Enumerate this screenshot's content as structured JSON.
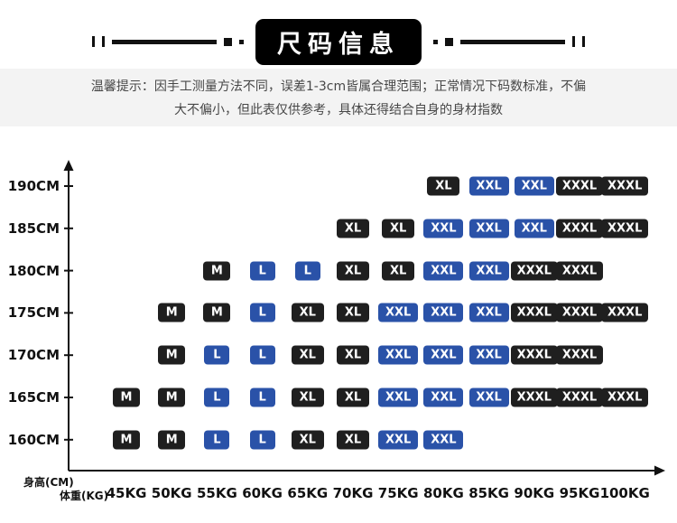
{
  "title": "尺码信息",
  "notice": {
    "line1": "温馨提示：因手工测量方法不同，误差1-3cm皆属合理范围；正常情况下码数标准，不偏",
    "line2": "大不偏小，但此表仅供参考，具体还得结合自身的身材指数"
  },
  "colors": {
    "dark": "#1f1f1f",
    "blue": "#2a52a8"
  },
  "chart_data": {
    "type": "heatmap",
    "title": "尺码信息",
    "x_axis_label": "体重(KG)",
    "y_axis_label": "身高(CM)",
    "weights": [
      "45KG",
      "50KG",
      "55KG",
      "60KG",
      "65KG",
      "70KG",
      "75KG",
      "80KG",
      "85KG",
      "90KG",
      "95KG",
      "100KG"
    ],
    "heights": [
      "190CM",
      "185CM",
      "180CM",
      "175CM",
      "170CM",
      "165CM",
      "160CM"
    ],
    "size_colors": {
      "M": "dark",
      "L": "blue",
      "XL": "dark",
      "XXL": "blue",
      "XXXL": "dark"
    },
    "rows": [
      {
        "height": "190CM",
        "cells": [
          {
            "weight": "80KG",
            "size": "XL"
          },
          {
            "weight": "85KG",
            "size": "XXL"
          },
          {
            "weight": "90KG",
            "size": "XXL"
          },
          {
            "weight": "95KG",
            "size": "XXXL"
          },
          {
            "weight": "100KG",
            "size": "XXXL"
          }
        ]
      },
      {
        "height": "185CM",
        "cells": [
          {
            "weight": "70KG",
            "size": "XL"
          },
          {
            "weight": "75KG",
            "size": "XL"
          },
          {
            "weight": "80KG",
            "size": "XXL"
          },
          {
            "weight": "85KG",
            "size": "XXL"
          },
          {
            "weight": "90KG",
            "size": "XXL"
          },
          {
            "weight": "95KG",
            "size": "XXXL"
          },
          {
            "weight": "100KG",
            "size": "XXXL"
          }
        ]
      },
      {
        "height": "180CM",
        "cells": [
          {
            "weight": "55KG",
            "size": "M"
          },
          {
            "weight": "60KG",
            "size": "L"
          },
          {
            "weight": "65KG",
            "size": "L"
          },
          {
            "weight": "70KG",
            "size": "XL"
          },
          {
            "weight": "75KG",
            "size": "XL"
          },
          {
            "weight": "80KG",
            "size": "XXL"
          },
          {
            "weight": "85KG",
            "size": "XXL"
          },
          {
            "weight": "90KG",
            "size": "XXXL"
          },
          {
            "weight": "95KG",
            "size": "XXXL"
          }
        ]
      },
      {
        "height": "175CM",
        "cells": [
          {
            "weight": "50KG",
            "size": "M"
          },
          {
            "weight": "55KG",
            "size": "M"
          },
          {
            "weight": "60KG",
            "size": "L"
          },
          {
            "weight": "65KG",
            "size": "XL"
          },
          {
            "weight": "70KG",
            "size": "XL"
          },
          {
            "weight": "75KG",
            "size": "XXL"
          },
          {
            "weight": "80KG",
            "size": "XXL"
          },
          {
            "weight": "85KG",
            "size": "XXL"
          },
          {
            "weight": "90KG",
            "size": "XXXL"
          },
          {
            "weight": "95KG",
            "size": "XXXL"
          },
          {
            "weight": "100KG",
            "size": "XXXL"
          }
        ]
      },
      {
        "height": "170CM",
        "cells": [
          {
            "weight": "50KG",
            "size": "M"
          },
          {
            "weight": "55KG",
            "size": "L"
          },
          {
            "weight": "60KG",
            "size": "L"
          },
          {
            "weight": "65KG",
            "size": "XL"
          },
          {
            "weight": "70KG",
            "size": "XL"
          },
          {
            "weight": "75KG",
            "size": "XXL"
          },
          {
            "weight": "80KG",
            "size": "XXL"
          },
          {
            "weight": "85KG",
            "size": "XXL"
          },
          {
            "weight": "90KG",
            "size": "XXXL"
          },
          {
            "weight": "95KG",
            "size": "XXXL"
          }
        ]
      },
      {
        "height": "165CM",
        "cells": [
          {
            "weight": "45KG",
            "size": "M"
          },
          {
            "weight": "50KG",
            "size": "M"
          },
          {
            "weight": "55KG",
            "size": "L"
          },
          {
            "weight": "60KG",
            "size": "L"
          },
          {
            "weight": "65KG",
            "size": "XL"
          },
          {
            "weight": "70KG",
            "size": "XL"
          },
          {
            "weight": "75KG",
            "size": "XXL"
          },
          {
            "weight": "80KG",
            "size": "XXL"
          },
          {
            "weight": "85KG",
            "size": "XXL"
          },
          {
            "weight": "90KG",
            "size": "XXXL"
          },
          {
            "weight": "95KG",
            "size": "XXXL"
          },
          {
            "weight": "100KG",
            "size": "XXXL"
          }
        ]
      },
      {
        "height": "160CM",
        "cells": [
          {
            "weight": "45KG",
            "size": "M"
          },
          {
            "weight": "50KG",
            "size": "M"
          },
          {
            "weight": "55KG",
            "size": "L"
          },
          {
            "weight": "60KG",
            "size": "L"
          },
          {
            "weight": "65KG",
            "size": "XL"
          },
          {
            "weight": "70KG",
            "size": "XL"
          },
          {
            "weight": "75KG",
            "size": "XXL"
          },
          {
            "weight": "80KG",
            "size": "XXL"
          }
        ]
      }
    ]
  }
}
